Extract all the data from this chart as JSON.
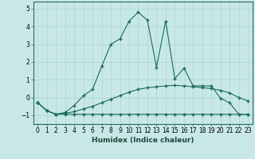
{
  "xlabel": "Humidex (Indice chaleur)",
  "background_color": "#c8e8e8",
  "grid_color": "#b0d8d8",
  "line_color": "#1a6b5a",
  "xlim": [
    -0.5,
    23.5
  ],
  "ylim": [
    -1.5,
    5.4
  ],
  "yticks": [
    -1,
    0,
    1,
    2,
    3,
    4,
    5
  ],
  "xticks": [
    0,
    1,
    2,
    3,
    4,
    5,
    6,
    7,
    8,
    9,
    10,
    11,
    12,
    13,
    14,
    15,
    16,
    17,
    18,
    19,
    20,
    21,
    22,
    23
  ],
  "series1_x": [
    0,
    1,
    2,
    3,
    4,
    5,
    6,
    7,
    8,
    9,
    10,
    11,
    12,
    13,
    14,
    15,
    16,
    17,
    18,
    19,
    20,
    21,
    22,
    23
  ],
  "series1_y": [
    -0.3,
    -0.75,
    -0.95,
    -0.95,
    -0.95,
    -0.95,
    -0.95,
    -0.95,
    -0.95,
    -0.95,
    -0.95,
    -0.95,
    -0.95,
    -0.95,
    -0.95,
    -0.95,
    -0.95,
    -0.95,
    -0.95,
    -0.95,
    -0.95,
    -0.95,
    -0.95,
    -0.95
  ],
  "series2_x": [
    0,
    1,
    2,
    3,
    4,
    5,
    6,
    7,
    8,
    9,
    10,
    11,
    12,
    13,
    14,
    15,
    16,
    17,
    18,
    19,
    20,
    21,
    22,
    23
  ],
  "series2_y": [
    -0.3,
    -0.75,
    -0.95,
    -0.9,
    -0.8,
    -0.65,
    -0.5,
    -0.3,
    -0.1,
    0.1,
    0.3,
    0.45,
    0.55,
    0.6,
    0.65,
    0.68,
    0.65,
    0.6,
    0.55,
    0.5,
    0.4,
    0.25,
    0.0,
    -0.2
  ],
  "series3_x": [
    0,
    1,
    2,
    3,
    4,
    5,
    6,
    7,
    8,
    9,
    10,
    11,
    12,
    13,
    14,
    15,
    16,
    17,
    18,
    19,
    20,
    21,
    22,
    23
  ],
  "series3_y": [
    -0.3,
    -0.75,
    -0.95,
    -0.85,
    -0.45,
    0.1,
    0.45,
    1.75,
    3.0,
    3.3,
    4.3,
    4.8,
    4.35,
    1.7,
    4.3,
    1.05,
    1.65,
    0.65,
    0.65,
    0.65,
    -0.05,
    -0.3,
    -0.95,
    -0.95
  ]
}
